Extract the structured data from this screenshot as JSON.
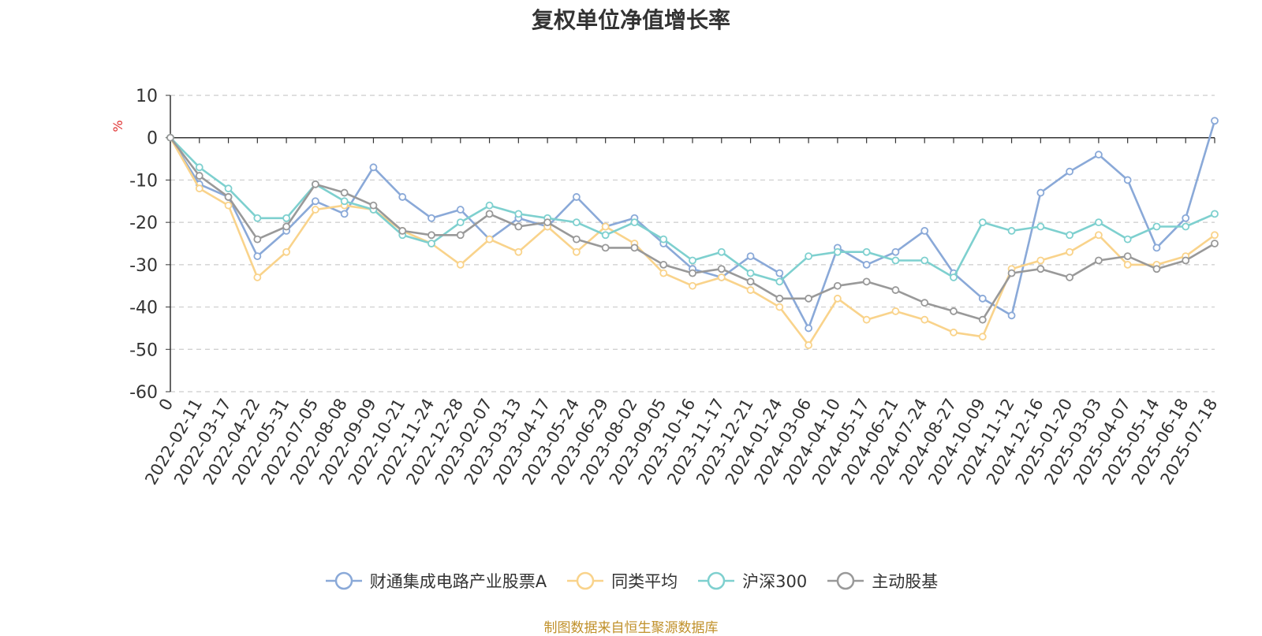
{
  "chart_data": {
    "type": "line",
    "title": "复权单位净值增长率",
    "ylabel": "%",
    "ylim": [
      -60,
      10
    ],
    "yticks": [
      10,
      0,
      -10,
      -20,
      -30,
      -40,
      -50,
      -60
    ],
    "x_labels": [
      "0",
      "2022-02-11",
      "2022-03-17",
      "2022-04-22",
      "2022-05-31",
      "2022-07-05",
      "2022-08-08",
      "2022-09-09",
      "2022-10-21",
      "2022-11-24",
      "2022-12-28",
      "2023-02-07",
      "2023-03-13",
      "2023-04-17",
      "2023-05-24",
      "2023-06-29",
      "2023-08-02",
      "2023-09-05",
      "2023-10-16",
      "2023-11-17",
      "2023-12-21",
      "2024-01-24",
      "2024-03-06",
      "2024-04-10",
      "2024-05-17",
      "2024-06-21",
      "2024-07-24",
      "2024-08-27",
      "2024-10-09",
      "2024-11-12",
      "2024-12-16",
      "2025-01-20",
      "2025-03-03",
      "2025-04-07",
      "2025-05-14",
      "2025-06-18",
      "2025-07-18"
    ],
    "grid": true,
    "legend_position": "bottom",
    "series": [
      {
        "name": "财通集成电路产业股票A",
        "color": "#8aa9d8",
        "values": [
          0,
          -11,
          -14,
          -28,
          -22,
          -15,
          -18,
          -7,
          -14,
          -19,
          -17,
          -24,
          -19,
          -21,
          -14,
          -21,
          -19,
          -25,
          -31,
          -33,
          -28,
          -32,
          -45,
          -26,
          -30,
          -27,
          -22,
          -32,
          -38,
          -42,
          -13,
          -8,
          -4,
          -10,
          -26,
          -19,
          4
        ]
      },
      {
        "name": "同类平均",
        "color": "#f9d38b",
        "values": [
          0,
          -12,
          -16,
          -33,
          -27,
          -17,
          -16,
          -17,
          -22,
          -25,
          -30,
          -24,
          -27,
          -21,
          -27,
          -21,
          -25,
          -32,
          -35,
          -33,
          -36,
          -40,
          -49,
          -38,
          -43,
          -41,
          -43,
          -46,
          -47,
          -31,
          -29,
          -27,
          -23,
          -30,
          -30,
          -28,
          -23
        ]
      },
      {
        "name": "沪深300",
        "color": "#7ed0cf",
        "values": [
          0,
          -7,
          -12,
          -19,
          -19,
          -11,
          -15,
          -17,
          -23,
          -25,
          -20,
          -16,
          -18,
          -19,
          -20,
          -23,
          -20,
          -24,
          -29,
          -27,
          -32,
          -34,
          -28,
          -27,
          -27,
          -29,
          -29,
          -33,
          -20,
          -22,
          -21,
          -23,
          -20,
          -24,
          -21,
          -21,
          -18
        ]
      },
      {
        "name": "主动股基",
        "color": "#999999",
        "values": [
          0,
          -9,
          -14,
          -24,
          -21,
          -11,
          -13,
          -16,
          -22,
          -23,
          -23,
          -18,
          -21,
          -20,
          -24,
          -26,
          -26,
          -30,
          -32,
          -31,
          -34,
          -38,
          -38,
          -35,
          -34,
          -36,
          -39,
          -41,
          -43,
          -32,
          -31,
          -33,
          -29,
          -28,
          -31,
          -29,
          -25
        ]
      }
    ]
  },
  "source_text": "制图数据来自恒生聚源数据库"
}
